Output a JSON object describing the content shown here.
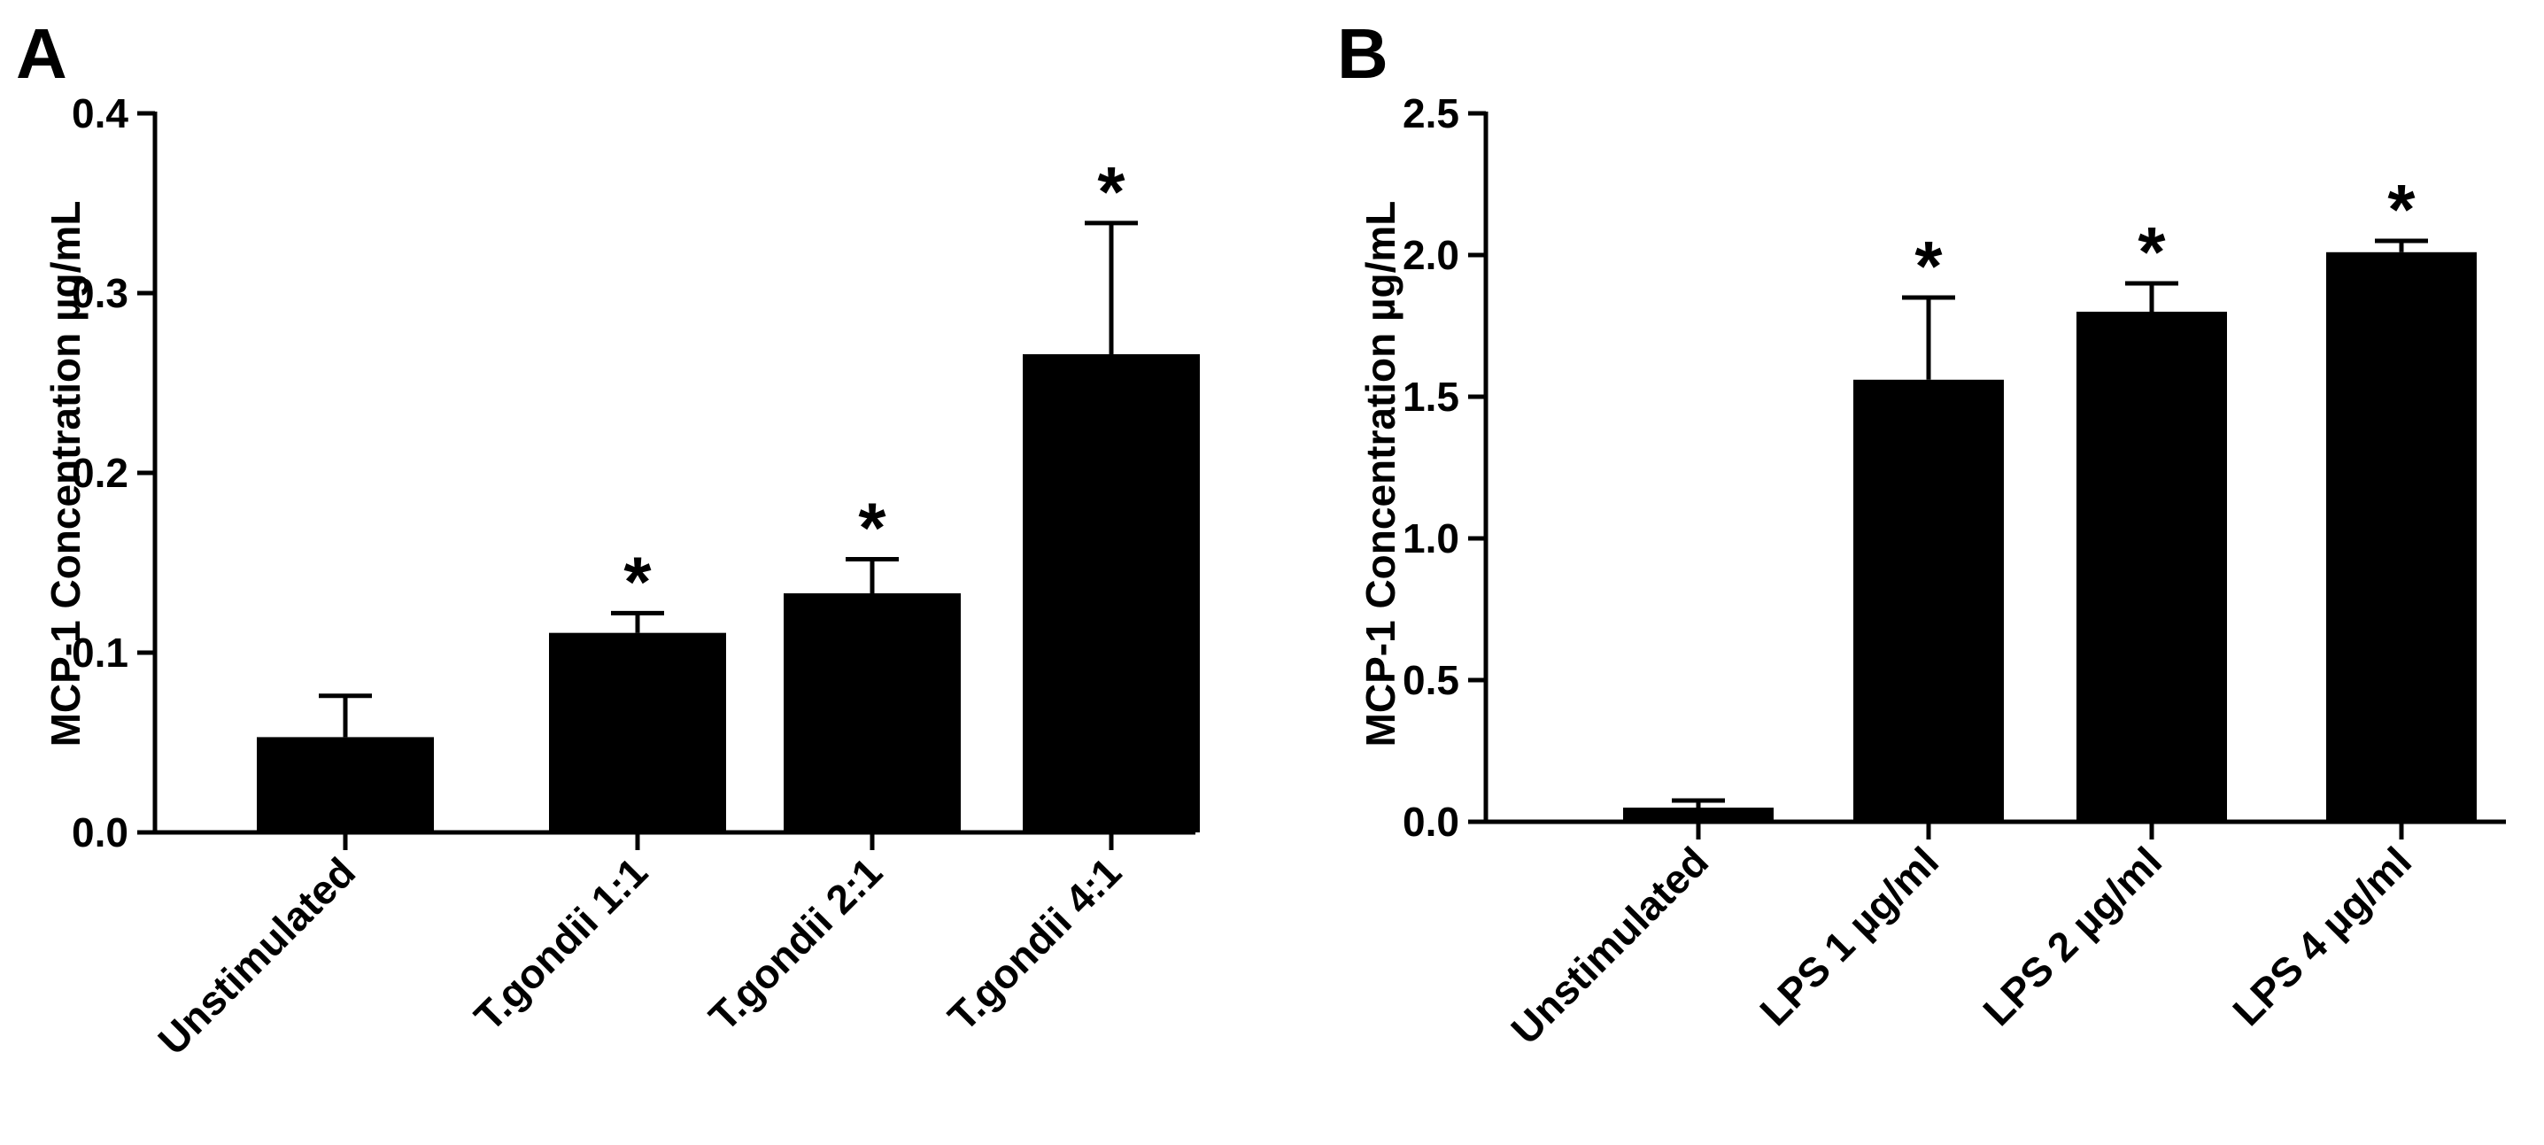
{
  "chart_data": [
    {
      "type": "bar",
      "panel_label": "A",
      "ylabel": "MCP-1 Concentration  µg/mL",
      "ylim": [
        0,
        0.4
      ],
      "yticks": [
        "0.0",
        "0.1",
        "0.2",
        "0.3",
        "0.4"
      ],
      "categories": [
        "Unstimulated",
        "T.gondii 1:1",
        "T.gondii 2:1",
        "T.gondii 4:1"
      ],
      "values": [
        0.053,
        0.111,
        0.133,
        0.266
      ],
      "errors": [
        0.023,
        0.011,
        0.019,
        0.073
      ],
      "significance": [
        "",
        "*",
        "*",
        "*"
      ],
      "bar_color": "#000000"
    },
    {
      "type": "bar",
      "panel_label": "B",
      "ylabel": "MCP-1 Concentration  µg/mL",
      "ylim": [
        0,
        2.5
      ],
      "yticks": [
        "0.0",
        "0.5",
        "1.0",
        "1.5",
        "2.0",
        "2.5"
      ],
      "categories": [
        "Unstimulated",
        "LPS 1 µg/ml",
        "LPS 2 µg/ml",
        "LPS 4 µg/ml"
      ],
      "values": [
        0.05,
        1.56,
        1.8,
        2.01
      ],
      "errors": [
        0.025,
        0.29,
        0.1,
        0.04
      ],
      "significance": [
        "",
        "*",
        "*",
        "*"
      ],
      "bar_color": "#000000"
    }
  ]
}
